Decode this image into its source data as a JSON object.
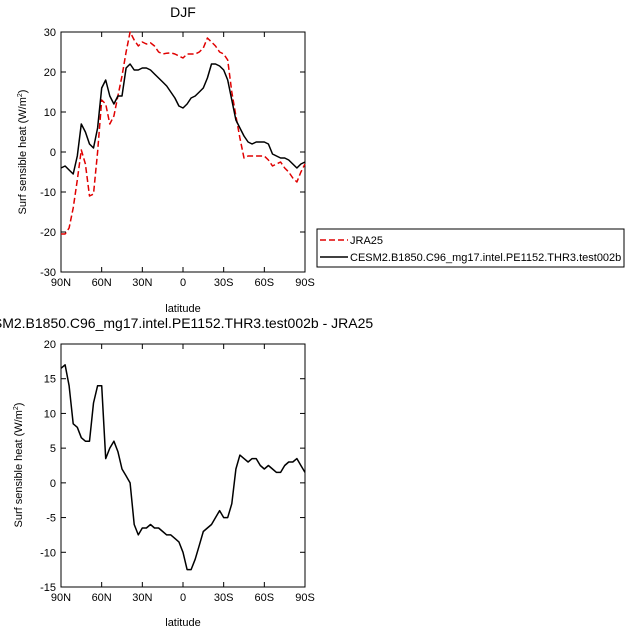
{
  "chart_data": [
    {
      "type": "line",
      "title": "DJF",
      "xlabel": "latitude",
      "ylabel": "Surf sensible heat (W/m",
      "ylabel_sup": "2",
      "ylabel_close": ")",
      "xlim": [
        -90,
        90
      ],
      "ylim": [
        -30,
        30
      ],
      "x_tick_values": [
        -90,
        -60,
        -30,
        0,
        30,
        60,
        90
      ],
      "x_tick_labels": [
        "90N",
        "60N",
        "30N",
        "0",
        "30S",
        "60S",
        "90S"
      ],
      "y_tick_values": [
        -30,
        -20,
        -10,
        0,
        10,
        20,
        30
      ],
      "y_tick_labels": [
        "-30",
        "-20",
        "-10",
        "0",
        "10",
        "20",
        "30"
      ],
      "grid": false,
      "legend_position": "right",
      "series": [
        {
          "name": "JRA25",
          "color": "#e00000",
          "dash": true,
          "x": [
            -90,
            -87,
            -84,
            -81,
            -78,
            -75,
            -72,
            -69,
            -66,
            -63,
            -60,
            -57,
            -54,
            -51,
            -48,
            -45,
            -42,
            -39,
            -36,
            -33,
            -30,
            -27,
            -24,
            -21,
            -18,
            -15,
            -12,
            -9,
            -6,
            -3,
            0,
            3,
            6,
            9,
            12,
            15,
            18,
            21,
            24,
            27,
            30,
            33,
            36,
            39,
            42,
            45,
            48,
            51,
            54,
            57,
            60,
            63,
            66,
            69,
            72,
            75,
            78,
            81,
            84,
            87,
            90
          ],
          "y": [
            -20.5,
            -20.5,
            -19,
            -14,
            -7,
            0.5,
            -3,
            -11,
            -10.5,
            0,
            13,
            12,
            7,
            9,
            14,
            19,
            25,
            30,
            28,
            26.5,
            27.5,
            27,
            27.3,
            26.5,
            25,
            24.5,
            24.7,
            24.8,
            24.5,
            24,
            23.5,
            24.5,
            24.5,
            24.5,
            25,
            26,
            28.5,
            27.5,
            26.5,
            25,
            24.5,
            23,
            15,
            9,
            3.5,
            -1.5,
            -1,
            -1,
            -1,
            -1,
            -1,
            -2,
            -3.5,
            -3,
            -2.5,
            -4,
            -5,
            -6.5,
            -7.5,
            -5,
            -3
          ]
        },
        {
          "name": "CESM2.B1850.C96_mg17.intel.PE1152.THR3.test002b",
          "color": "#000000",
          "dash": false,
          "x": [
            -90,
            -87,
            -84,
            -81,
            -78,
            -75,
            -72,
            -69,
            -66,
            -63,
            -60,
            -57,
            -54,
            -51,
            -48,
            -45,
            -42,
            -39,
            -36,
            -33,
            -30,
            -27,
            -24,
            -21,
            -18,
            -15,
            -12,
            -9,
            -6,
            -3,
            0,
            3,
            6,
            9,
            12,
            15,
            18,
            21,
            24,
            27,
            30,
            33,
            36,
            39,
            42,
            45,
            48,
            51,
            54,
            57,
            60,
            63,
            66,
            69,
            72,
            75,
            78,
            81,
            84,
            87,
            90
          ],
          "y": [
            -4,
            -3.5,
            -4.5,
            -5.5,
            -1,
            7,
            5,
            2,
            1,
            6,
            16,
            18,
            14,
            12,
            14,
            14,
            21,
            22,
            20.5,
            20.5,
            21,
            21,
            20.5,
            19.5,
            18.5,
            17.5,
            16.5,
            15,
            13.5,
            11.5,
            11,
            12,
            13.5,
            14,
            15,
            16,
            18.5,
            22,
            22,
            21.5,
            20.5,
            18,
            13,
            8,
            6,
            4,
            2.5,
            2,
            2.5,
            2.5,
            2.5,
            2,
            -0.5,
            -1,
            -1.5,
            -1.5,
            -2,
            -3,
            -4,
            -3,
            -2.5
          ]
        }
      ]
    },
    {
      "type": "line",
      "title": "SM2.B1850.C96_mg17.intel.PE1152.THR3.test002b - JRA25",
      "xlabel": "latitude",
      "ylabel": "Surf sensible heat (W/m",
      "ylabel_sup": "2",
      "ylabel_close": ")",
      "xlim": [
        -90,
        90
      ],
      "ylim": [
        -15,
        20
      ],
      "x_tick_values": [
        -90,
        -60,
        -30,
        0,
        30,
        60,
        90
      ],
      "x_tick_labels": [
        "90N",
        "60N",
        "30N",
        "0",
        "30S",
        "60S",
        "90S"
      ],
      "y_tick_values": [
        -15,
        -10,
        -5,
        0,
        5,
        10,
        15,
        20
      ],
      "y_tick_labels": [
        "-15",
        "-10",
        "-5",
        "0",
        "5",
        "10",
        "15",
        "20"
      ],
      "grid": false,
      "series": [
        {
          "color": "#000000",
          "dash": false,
          "x": [
            -90,
            -87,
            -84,
            -81,
            -78,
            -75,
            -72,
            -69,
            -66,
            -63,
            -60,
            -57,
            -54,
            -51,
            -48,
            -45,
            -42,
            -39,
            -36,
            -33,
            -30,
            -27,
            -24,
            -21,
            -18,
            -15,
            -12,
            -9,
            -6,
            -3,
            0,
            3,
            6,
            9,
            12,
            15,
            18,
            21,
            24,
            27,
            30,
            33,
            36,
            39,
            42,
            45,
            48,
            51,
            54,
            57,
            60,
            63,
            66,
            69,
            72,
            75,
            78,
            81,
            84,
            87,
            90
          ],
          "y": [
            16.5,
            17,
            14,
            8.5,
            8,
            6.5,
            6,
            6,
            11.5,
            14,
            14,
            3.5,
            5,
            6,
            4.5,
            2,
            1,
            0,
            -6,
            -7.5,
            -6.5,
            -6.5,
            -6,
            -6.5,
            -6.5,
            -7,
            -7.5,
            -7.5,
            -8,
            -8.5,
            -10,
            -12.5,
            -12.5,
            -11,
            -9,
            -7,
            -6.5,
            -6,
            -5,
            -4,
            -5,
            -5,
            -3,
            2,
            4,
            3.5,
            3,
            3.5,
            3.5,
            2.5,
            2,
            2.5,
            2,
            1.5,
            1.5,
            2.5,
            3,
            3,
            3.5,
            2.5,
            1.5
          ]
        }
      ]
    }
  ]
}
